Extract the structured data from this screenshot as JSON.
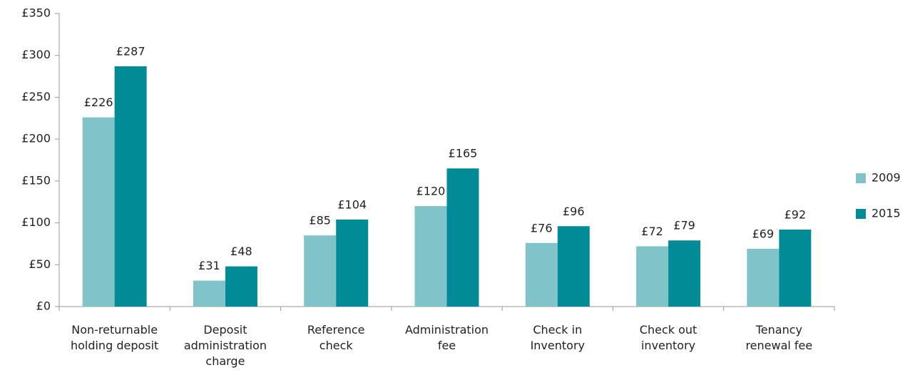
{
  "chart_data": {
    "type": "bar",
    "categories": [
      "Non-returnable\nholding deposit",
      "Deposit\nadministration\ncharge",
      "Reference\ncheck",
      "Administration\nfee",
      "Check in\nInventory",
      "Check out\ninventory",
      "Tenancy\nrenewal fee"
    ],
    "series": [
      {
        "name": "2009",
        "color": "#80c4c9",
        "values": [
          226,
          31,
          85,
          120,
          76,
          72,
          69
        ],
        "value_labels": [
          "£226",
          "£31",
          "£85",
          "£120",
          "£76",
          "£72",
          "£69"
        ]
      },
      {
        "name": "2015",
        "color": "#008b96",
        "values": [
          287,
          48,
          104,
          165,
          96,
          79,
          92
        ],
        "value_labels": [
          "£287",
          "£48",
          "£104",
          "£165",
          "£96",
          "£79",
          "£92"
        ]
      }
    ],
    "ylim": [
      0,
      350
    ],
    "yticks": [
      {
        "value": 0,
        "label": "£0"
      },
      {
        "value": 50,
        "label": "£50"
      },
      {
        "value": 100,
        "label": "£100"
      },
      {
        "value": 150,
        "label": "£150"
      },
      {
        "value": 200,
        "label": "£200"
      },
      {
        "value": 250,
        "label": "£250"
      },
      {
        "value": 300,
        "label": "£300"
      },
      {
        "value": 350,
        "label": "£350"
      }
    ],
    "grid": false,
    "legend": "right"
  }
}
